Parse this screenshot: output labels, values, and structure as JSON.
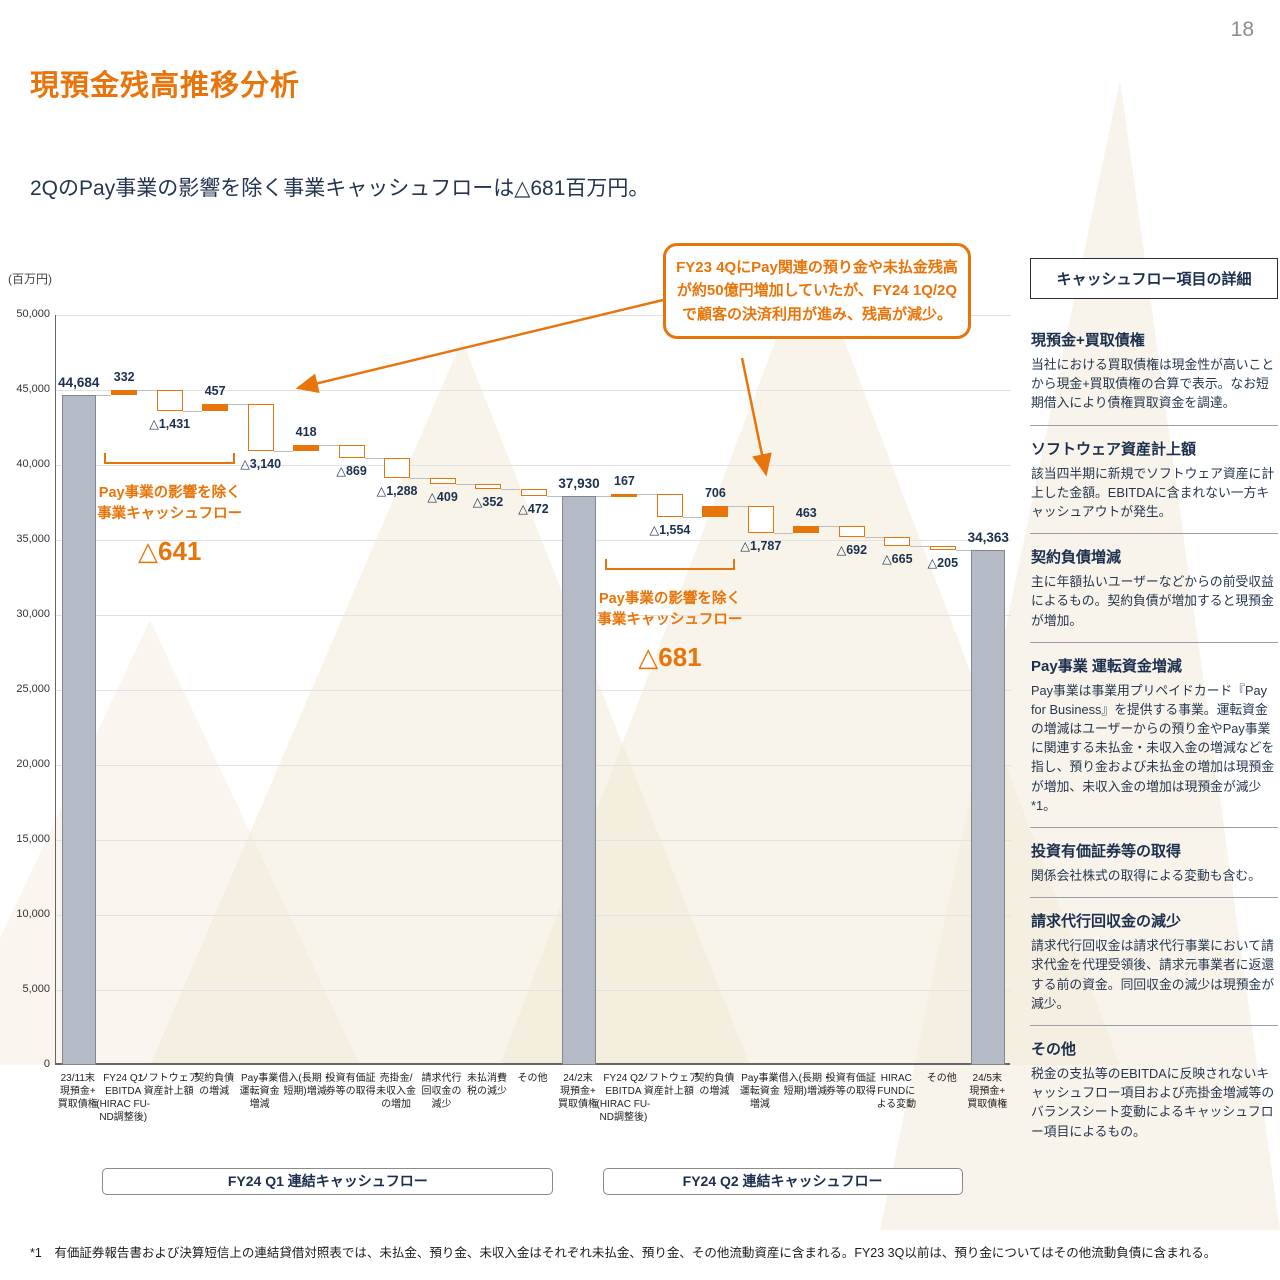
{
  "page_number": "18",
  "title": "現預金残高推移分析",
  "subtitle": "2QのPay事業の影響を除く事業キャッシュフローは△681百万円。",
  "callout": "FY23 4QにPay関連の預り金や未払金残高が約50億円増加していたが、FY24 1Q/2Qで顧客の決済利用が進み、残高が減少。",
  "footnote": "*1　有価証券報告書および決算短信上の連結貸借対照表では、未払金、預り金、未収入金はそれぞれ未払金、預り金、その他流動資産に含まれる。FY23 3Q以前は、預り金についてはその他流動負債に含まれる。",
  "colors": {
    "accent_orange": "#E8750C",
    "navy": "#1F3864",
    "total_bar_fill": "#B4BAC6",
    "gridline": "#E2E2E2"
  },
  "chart_data": {
    "type": "waterfall",
    "unit": "(百万円)",
    "ylim": [
      0,
      50000
    ],
    "ytick_step": 5000,
    "bars": [
      {
        "label": "23/11末\n現預金+\n買取債権",
        "kind": "total",
        "value": 44684,
        "display": "44,684"
      },
      {
        "label": "FY24 Q1\nEBITDA\n(HIRAC FU-\nND調整後)",
        "kind": "change",
        "value": 332,
        "display": "332"
      },
      {
        "label": "ソフトウェア\n資産計上額",
        "kind": "change",
        "value": -1431,
        "display": "△1,431"
      },
      {
        "label": "契約負債\nの増減",
        "kind": "change",
        "value": 457,
        "display": "457"
      },
      {
        "label": "Pay事業\n運転資金\n増減",
        "kind": "change",
        "value": -3140,
        "display": "△3,140"
      },
      {
        "label": "借入(長期・\n短期)増減",
        "kind": "change",
        "value": 418,
        "display": "418"
      },
      {
        "label": "投資有価証\n券等の取得",
        "kind": "change",
        "value": -869,
        "display": "△869"
      },
      {
        "label": "売掛金/\n未収入金\nの増加",
        "kind": "change",
        "value": -1288,
        "display": "△1,288"
      },
      {
        "label": "請求代行\n回収金の\n減少",
        "kind": "change",
        "value": -409,
        "display": "△409"
      },
      {
        "label": "未払消費\n税の減少",
        "kind": "change",
        "value": -352,
        "display": "△352"
      },
      {
        "label": "その他",
        "kind": "change",
        "value": -472,
        "display": "△472"
      },
      {
        "label": "24/2末\n現預金+\n買取債権",
        "kind": "total",
        "value": 37930,
        "display": "37,930"
      },
      {
        "label": "FY24 Q2\nEBITDA\n(HIRAC FU-\nND調整後)",
        "kind": "change",
        "value": 167,
        "display": "167"
      },
      {
        "label": "ソフトウェア\n資産計上額",
        "kind": "change",
        "value": -1554,
        "display": "△1,554"
      },
      {
        "label": "契約負債\nの増減",
        "kind": "change",
        "value": 706,
        "display": "706"
      },
      {
        "label": "Pay事業\n運転資金\n増減",
        "kind": "change",
        "value": -1787,
        "display": "△1,787"
      },
      {
        "label": "借入(長期・\n短期)増減",
        "kind": "change",
        "value": 463,
        "display": "463"
      },
      {
        "label": "投資有価証\n券等の取得",
        "kind": "change",
        "value": -692,
        "display": "△692"
      },
      {
        "label": "HIRAC\nFUNDに\nよる変動",
        "kind": "change",
        "value": -665,
        "display": "△665"
      },
      {
        "label": "その他",
        "kind": "change",
        "value": -205,
        "display": "△205"
      },
      {
        "label": "24/5末\n現預金+\n買取債権",
        "kind": "total",
        "value": 34363,
        "display": "34,363"
      }
    ],
    "annotations": [
      {
        "text_lines": [
          "Pay事業の影響を除く",
          "事業キャッシュフロー"
        ],
        "value_label": "△641",
        "from_index": 1,
        "to_index": 3
      },
      {
        "text_lines": [
          "Pay事業の影響を除く",
          "事業キャッシュフロー"
        ],
        "value_label": "△681",
        "from_index": 12,
        "to_index": 14
      }
    ],
    "group_boxes": [
      {
        "label": "FY24 Q1 連結キャッシュフロー",
        "from_index": 1,
        "to_index": 10
      },
      {
        "label": "FY24 Q2 連結キャッシュフロー",
        "from_index": 12,
        "to_index": 19
      }
    ]
  },
  "sidebar": {
    "title": "キャッシュフロー項目の詳細",
    "sections": [
      {
        "heading": "現預金+買取債権",
        "body": "当社における買取債権は現金性が高いことから現金+買取債権の合算で表示。なお短期借入により債権買取資金を調達。"
      },
      {
        "heading": "ソフトウェア資産計上額",
        "body": "該当四半期に新規でソフトウェア資産に計上した金額。EBITDAに含まれない一方キャッシュアウトが発生。"
      },
      {
        "heading": "契約負債増減",
        "body": "主に年額払いユーザーなどからの前受収益によるもの。契約負債が増加すると現預金が増加。"
      },
      {
        "heading": "Pay事業 運転資金増減",
        "body": "Pay事業は事業用プリペイドカード『Pay for Business』を提供する事業。運転資金の増減はユーザーからの預り金やPay事業に関連する未払金・未収入金の増減などを指し、預り金および未払金の増加は現預金が増加、未収入金の増加は現預金が減少*1。"
      },
      {
        "heading": "投資有価証券等の取得",
        "body": "関係会社株式の取得による変動も含む。"
      },
      {
        "heading": "請求代行回収金の減少",
        "body": "請求代行回収金は請求代行事業において請求代金を代理受領後、請求元事業者に返還する前の資金。同回収金の減少は現預金が減少。"
      },
      {
        "heading": "その他",
        "body": "税金の支払等のEBITDAに反映されないキャッシュフロー項目および売掛金増減等のバランスシート変動によるキャッシュフロー項目によるもの。"
      }
    ]
  }
}
